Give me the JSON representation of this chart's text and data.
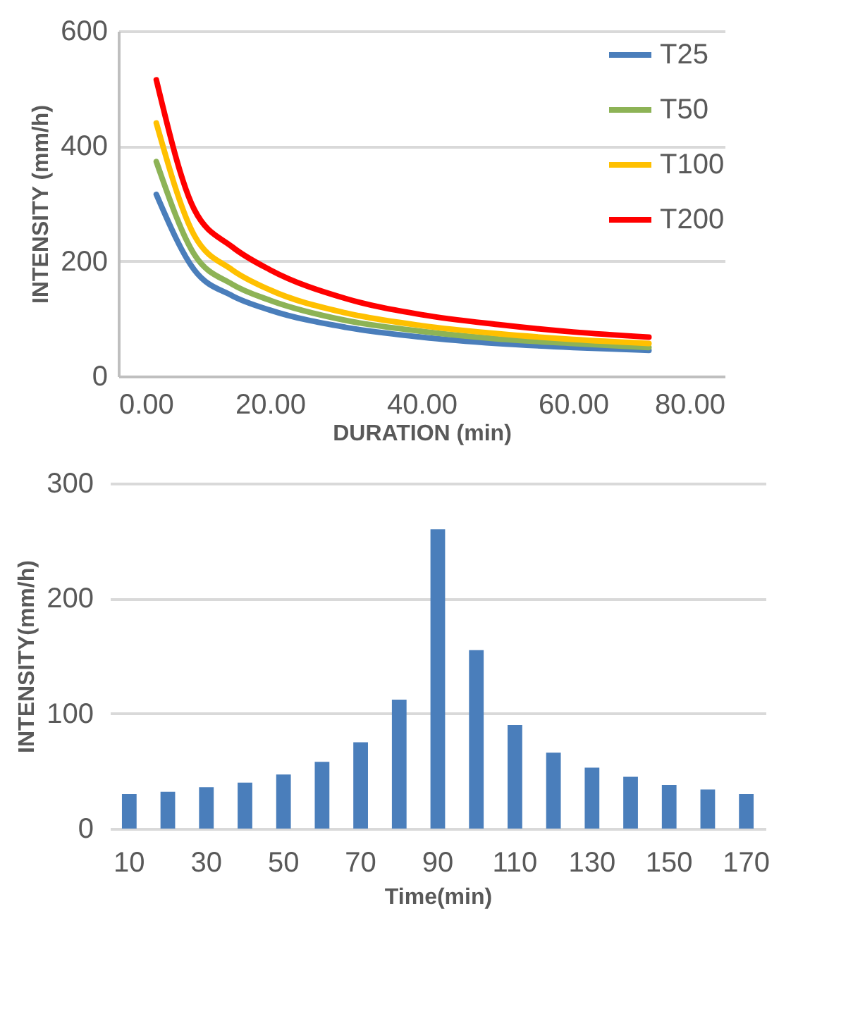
{
  "chart_data": [
    {
      "type": "line",
      "xlabel": "DURATION (min)",
      "ylabel": "INTENSITY (mm/h)",
      "x": [
        5,
        10,
        15,
        20,
        30,
        40,
        50,
        60,
        70
      ],
      "series": [
        {
          "name": "T25",
          "color": "#4a7ebb",
          "values": [
            316,
            185,
            140,
            115,
            85,
            68,
            57,
            50,
            45
          ]
        },
        {
          "name": "T50",
          "color": "#8db356",
          "values": [
            373,
            212,
            160,
            132,
            97,
            78,
            65,
            57,
            50
          ]
        },
        {
          "name": "T100",
          "color": "#ffc000",
          "values": [
            440,
            245,
            185,
            150,
            110,
            88,
            74,
            64,
            57
          ]
        },
        {
          "name": "T200",
          "color": "#ff0000",
          "values": [
            515,
            290,
            225,
            185,
            135,
            107,
            90,
            77,
            68
          ]
        }
      ],
      "xlim": [
        0,
        80
      ],
      "xticks": [
        {
          "value": 0,
          "label": "0.00"
        },
        {
          "value": 20,
          "label": "20.00"
        },
        {
          "value": 40,
          "label": "40.00"
        },
        {
          "value": 60,
          "label": "60.00"
        },
        {
          "value": 80,
          "label": "80.00"
        }
      ],
      "ylim": [
        0,
        600
      ],
      "yticks": [
        0,
        200,
        400,
        600
      ],
      "grid": "y",
      "legend": "top right",
      "marker": "none"
    },
    {
      "type": "bar",
      "xlabel": "Time(min)",
      "ylabel": "INTENSITY(mm/h)",
      "categories": [
        "10",
        null,
        "30",
        null,
        "50",
        null,
        "70",
        null,
        "90",
        null,
        "110",
        null,
        "130",
        null,
        "150",
        null,
        "170"
      ],
      "values": [
        30,
        32,
        36,
        40,
        47,
        58,
        75,
        112,
        260,
        155,
        90,
        66,
        53,
        45,
        38,
        34,
        30
      ],
      "color": "#4a7ebb",
      "ylim": [
        0,
        300
      ],
      "yticks": [
        0,
        100,
        200,
        300
      ],
      "grid": "y"
    }
  ]
}
